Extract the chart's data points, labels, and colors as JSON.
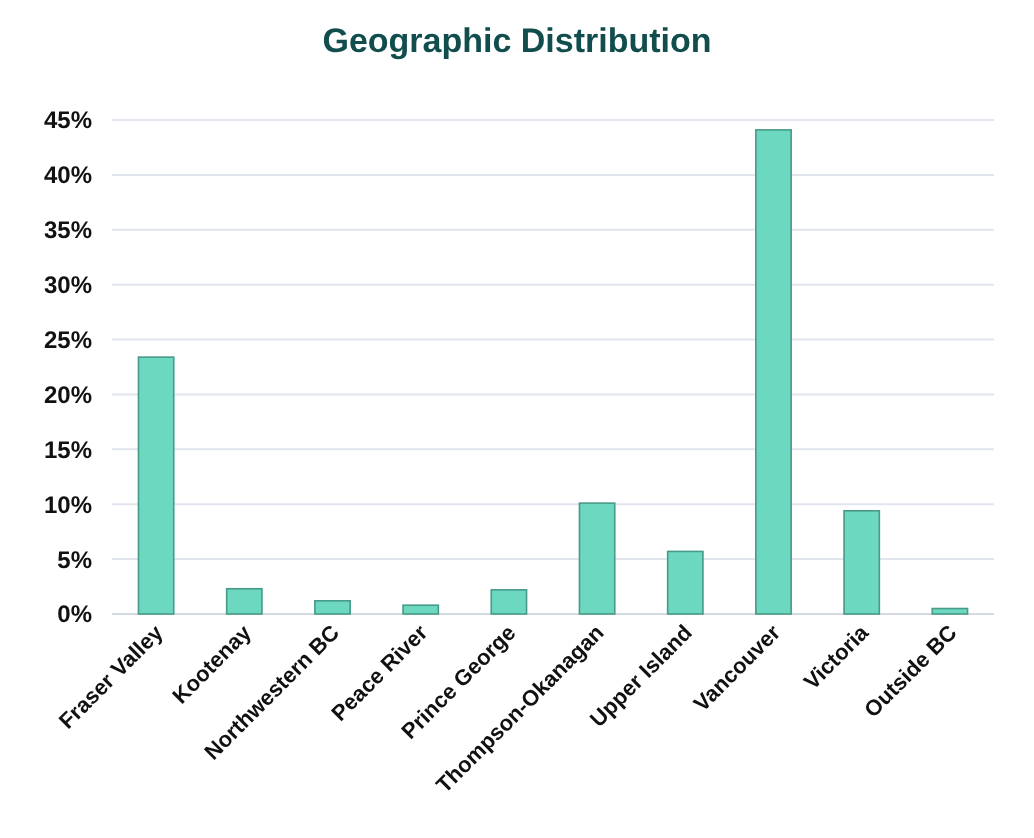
{
  "chart_data": {
    "type": "bar",
    "title": "Geographic Distribution",
    "categories": [
      "Fraser Valley",
      "Kootenay",
      "Northwestern BC",
      "Peace River",
      "Prince George",
      "Thompson-Okanagan",
      "Upper Island",
      "Vancouver",
      "Victoria",
      "Outside BC"
    ],
    "values": [
      23.4,
      2.3,
      1.2,
      0.8,
      2.2,
      10.1,
      5.7,
      44.1,
      9.4,
      0.5
    ],
    "color": "#6dd8c0",
    "ylim": [
      0,
      45
    ],
    "yticks": [
      {
        "value": 0,
        "label": "0%"
      },
      {
        "value": 5,
        "label": "5%"
      },
      {
        "value": 10,
        "label": "10%"
      },
      {
        "value": 15,
        "label": "15%"
      },
      {
        "value": 20,
        "label": "20%"
      },
      {
        "value": 25,
        "label": "25%"
      },
      {
        "value": 30,
        "label": "30%"
      },
      {
        "value": 35,
        "label": "35%"
      },
      {
        "value": 40,
        "label": "40%"
      },
      {
        "value": 45,
        "label": "45%"
      }
    ],
    "grid": "y"
  }
}
